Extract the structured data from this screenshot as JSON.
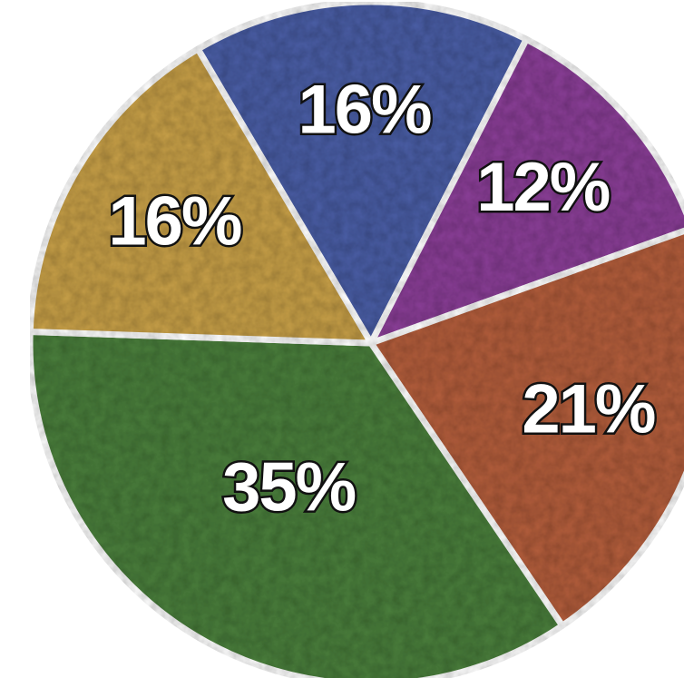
{
  "chart_data": {
    "type": "pie",
    "categories": [
      null,
      null,
      null,
      null,
      null
    ],
    "values": [
      16,
      12,
      21,
      35,
      16
    ],
    "value_labels": [
      "16%",
      "12%",
      "21%",
      "35%",
      "16%"
    ],
    "colors": [
      "#4c5ea6",
      "#8b3f98",
      "#b45f3e",
      "#4c7f3c",
      "#c8a04a"
    ]
  }
}
